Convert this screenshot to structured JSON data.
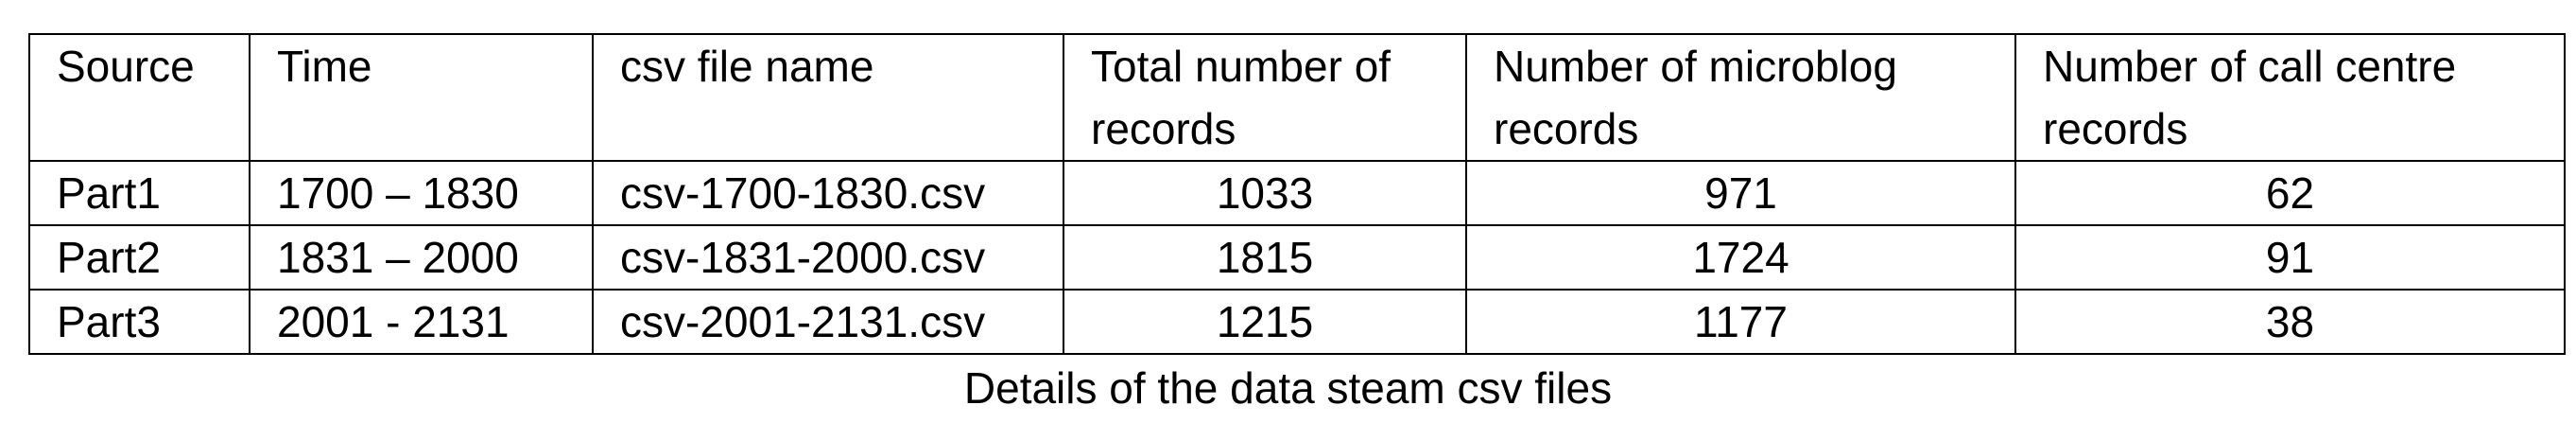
{
  "table": {
    "headers": [
      "Source",
      "Time",
      "csv file name",
      "Total number of records",
      "Number of microblog records",
      "Number of call centre records"
    ],
    "rows": [
      [
        "Part1",
        "1700 – 1830",
        "csv-1700-1830.csv",
        "1033",
        "971",
        "62"
      ],
      [
        "Part2",
        "1831 – 2000",
        "csv-1831-2000.csv",
        "1815",
        "1724",
        "91"
      ],
      [
        "Part3",
        "2001 - 2131",
        "csv-2001-2131.csv",
        "1215",
        "1177",
        "38"
      ]
    ]
  },
  "caption": "Details of the data steam csv files"
}
